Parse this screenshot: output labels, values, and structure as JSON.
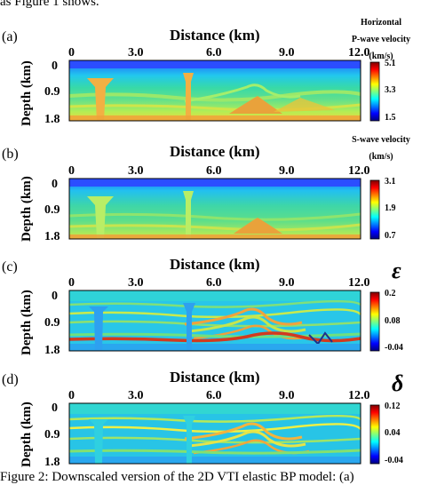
{
  "page": {
    "top_text": "as Figure 1 shows.",
    "caption": "Figure 2: Downscaled version of the 2D VTI elastic BP model: (a)"
  },
  "panels": [
    {
      "label": "(a)",
      "x_title": "Distance (km)",
      "x_ticks": [
        "0",
        "3.0",
        "6.0",
        "9.0",
        "12.0"
      ],
      "y_title": "Depth (km)",
      "y_ticks": [
        "0",
        "0.9",
        "1.8"
      ],
      "colorbar_title": [
        "Horizontal",
        "P-wave velocity",
        "(km/s)"
      ],
      "colorbar_ticks": [
        "5.1",
        "3.3",
        "1.5"
      ],
      "symbol": ""
    },
    {
      "label": "(b)",
      "x_title": "Distance (km)",
      "x_ticks": [
        "0",
        "3.0",
        "6.0",
        "9.0",
        "12.0"
      ],
      "y_title": "Depth (km)",
      "y_ticks": [
        "0",
        "0.9",
        "1.8"
      ],
      "colorbar_title": [
        "S-wave velocity",
        "(km/s)"
      ],
      "colorbar_ticks": [
        "3.1",
        "1.9",
        "0.7"
      ],
      "symbol": ""
    },
    {
      "label": "(c)",
      "x_title": "Distance (km)",
      "x_ticks": [
        "0",
        "3.0",
        "6.0",
        "9.0",
        "12.0"
      ],
      "y_title": "Depth (km)",
      "y_ticks": [
        "0",
        "0.9",
        "1.8"
      ],
      "colorbar_title": [],
      "colorbar_ticks": [
        "0.2",
        "0.08",
        "-0.04"
      ],
      "symbol": "ε"
    },
    {
      "label": "(d)",
      "x_title": "Distance (km)",
      "x_ticks": [
        "0",
        "3.0",
        "6.0",
        "9.0",
        "12.0"
      ],
      "y_title": "Depth (km)",
      "y_ticks": [
        "0",
        "0.9",
        "1.8"
      ],
      "colorbar_title": [],
      "colorbar_ticks": [
        "0.12",
        "0.04",
        "-0.04"
      ],
      "symbol": "δ"
    }
  ],
  "colors": {
    "jet": [
      "#00007f",
      "#0000ff",
      "#007fff",
      "#00ffff",
      "#7fff7f",
      "#ffff00",
      "#ff7f00",
      "#ff0000",
      "#7f0000"
    ]
  }
}
